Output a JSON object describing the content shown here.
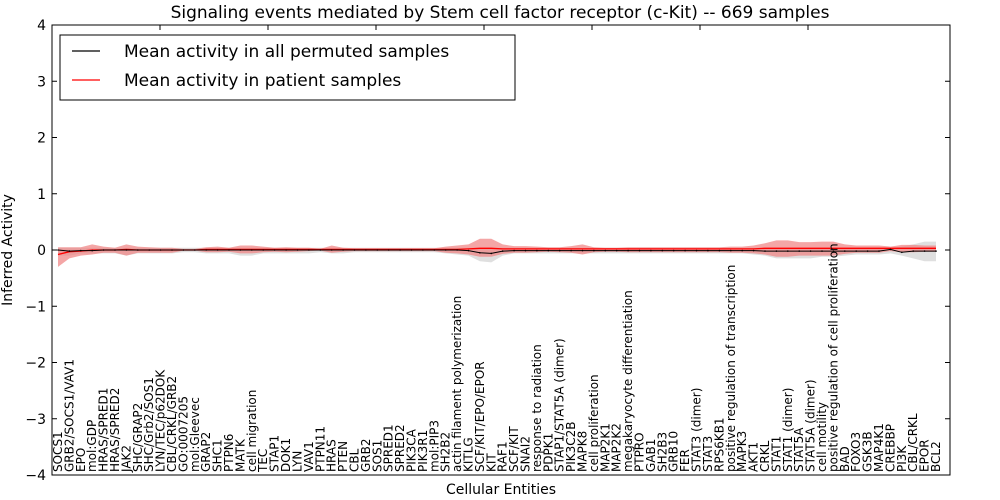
{
  "chart_data": {
    "type": "line",
    "title": "Signaling events mediated by Stem cell factor receptor (c-Kit) -- 669 samples",
    "xlabel": "Cellular Entities",
    "ylabel": "Inferred Activity",
    "ylim": [
      -4,
      4
    ],
    "yticks": [
      -4,
      -3,
      -2,
      -1,
      0,
      1,
      2,
      3,
      4
    ],
    "ytick_labels": [
      "−4",
      "−3",
      "−2",
      "−1",
      "0",
      "1",
      "2",
      "3",
      "4"
    ],
    "grid": false,
    "legend_position": "top-left",
    "legend": [
      {
        "label": "Mean activity in all permuted samples",
        "color": "#000000"
      },
      {
        "label": "Mean activity in patient samples",
        "color": "#ff0000"
      }
    ],
    "colors": {
      "patient_line": "#ff0000",
      "patient_band": "#f08080",
      "permuted_line": "#000000",
      "permuted_band": "#d9d9d9"
    },
    "categories": [
      "SOCS1",
      "GRB2/SOCS1/VAV1",
      "EPO",
      "mol:GDP",
      "HRAS/SPRED1",
      "HRAS/SPRED2",
      "JAK2",
      "SHC/GRAP2",
      "SHC/Grb2/SOS1",
      "LYN/TEC/p62DOK",
      "CBL/CRKL/GRB2",
      "GO:0007205",
      "mol:Gleevec",
      "GRAP2",
      "SHC1",
      "PTPN6",
      "MATK",
      "cell migration",
      "TEC",
      "STAP1",
      "DOK1",
      "LYN",
      "VAV1",
      "PTPN11",
      "HRAS",
      "PTEN",
      "CBL",
      "GRB2",
      "SOS1",
      "SPRED1",
      "SPRED2",
      "PIK3CA",
      "PIK3R1",
      "mol:PIP3",
      "SH2B2",
      "actin filament polymerization",
      "KITLG",
      "SCF/KIT/EPO/EPOR",
      "KIT",
      "RAF1",
      "SCF/KIT",
      "SNAI2",
      "response to radiation",
      "PDPK1",
      "STAP1/STAT5A (dimer)",
      "PIK3C2B",
      "MAPK8",
      "cell proliferation",
      "MAP2K1",
      "MAP2K2",
      "megakaryocyte differentiation",
      "PTPRO",
      "GAB1",
      "SH2B3",
      "GRB10",
      "FER",
      "STAT3 (dimer)",
      "STAT3",
      "RPS6KB1",
      "positive regulation of transcription",
      "MAPK3",
      "AKT1",
      "CRKL",
      "STAT1",
      "STAT1 (dimer)",
      "STAT5A",
      "STAT5A (dimer)",
      "cell motility",
      "positive regulation of cell proliferation",
      "BAD",
      "FOXO3",
      "GSK3B",
      "MAP4K1",
      "CREBBP",
      "PI3K",
      "CBL/CRKL",
      "EPOR",
      "BCL2"
    ],
    "series": [
      {
        "name": "Mean activity in patient samples",
        "values": [
          -0.08,
          -0.03,
          -0.02,
          0.0,
          0.0,
          0.0,
          0.01,
          0.0,
          0.0,
          0.0,
          0.0,
          0.0,
          0.0,
          0.01,
          0.01,
          0.01,
          0.01,
          0.01,
          0.01,
          0.01,
          0.01,
          0.01,
          0.01,
          0.01,
          0.01,
          0.01,
          0.01,
          0.01,
          0.01,
          0.01,
          0.01,
          0.01,
          0.01,
          0.01,
          0.01,
          0.01,
          0.02,
          0.03,
          0.03,
          0.02,
          0.02,
          0.02,
          0.02,
          0.02,
          0.02,
          0.02,
          0.02,
          0.02,
          0.02,
          0.02,
          0.02,
          0.02,
          0.02,
          0.02,
          0.02,
          0.02,
          0.02,
          0.02,
          0.02,
          0.02,
          0.02,
          0.02,
          0.03,
          0.03,
          0.03,
          0.03,
          0.03,
          0.03,
          0.03,
          0.03,
          0.03,
          0.03,
          0.03,
          0.03,
          0.03,
          0.03,
          0.03,
          0.03
        ],
        "band_upper": [
          0.05,
          0.05,
          0.05,
          0.1,
          0.06,
          0.04,
          0.1,
          0.06,
          0.05,
          0.04,
          0.04,
          0.02,
          0.02,
          0.05,
          0.06,
          0.04,
          0.08,
          0.08,
          0.06,
          0.04,
          0.05,
          0.04,
          0.04,
          0.02,
          0.08,
          0.04,
          0.03,
          0.03,
          0.03,
          0.03,
          0.03,
          0.03,
          0.03,
          0.03,
          0.06,
          0.08,
          0.1,
          0.2,
          0.2,
          0.1,
          0.07,
          0.07,
          0.06,
          0.05,
          0.05,
          0.07,
          0.1,
          0.05,
          0.04,
          0.04,
          0.05,
          0.05,
          0.05,
          0.05,
          0.05,
          0.05,
          0.05,
          0.05,
          0.05,
          0.06,
          0.06,
          0.08,
          0.12,
          0.17,
          0.17,
          0.14,
          0.14,
          0.15,
          0.15,
          0.1,
          0.08,
          0.08,
          0.08,
          0.06,
          0.09,
          0.09,
          0.08,
          0.08
        ],
        "band_lower": [
          -0.3,
          -0.15,
          -0.1,
          -0.08,
          -0.05,
          -0.05,
          -0.1,
          -0.05,
          -0.05,
          -0.05,
          -0.05,
          -0.01,
          -0.01,
          -0.04,
          -0.04,
          -0.03,
          -0.06,
          -0.06,
          -0.04,
          -0.03,
          -0.04,
          -0.03,
          -0.02,
          -0.01,
          -0.05,
          -0.03,
          -0.02,
          -0.02,
          -0.02,
          -0.02,
          -0.02,
          -0.02,
          -0.02,
          -0.02,
          -0.05,
          -0.06,
          -0.08,
          -0.12,
          -0.12,
          -0.07,
          -0.05,
          -0.05,
          -0.04,
          -0.03,
          -0.04,
          -0.05,
          -0.08,
          -0.04,
          -0.03,
          -0.03,
          -0.04,
          -0.04,
          -0.04,
          -0.04,
          -0.04,
          -0.04,
          -0.04,
          -0.04,
          -0.04,
          -0.05,
          -0.05,
          -0.06,
          -0.08,
          -0.12,
          -0.12,
          -0.1,
          -0.1,
          -0.1,
          -0.1,
          -0.07,
          -0.05,
          -0.05,
          -0.05,
          -0.02,
          -0.04,
          -0.04,
          -0.03,
          -0.03
        ]
      },
      {
        "name": "Mean activity in all permuted samples",
        "values": [
          0.0,
          -0.02,
          -0.01,
          -0.01,
          0.0,
          0.0,
          0.0,
          0.0,
          0.0,
          0.0,
          0.0,
          0.0,
          0.0,
          0.0,
          0.0,
          0.0,
          0.0,
          0.0,
          0.0,
          0.0,
          0.0,
          0.0,
          0.0,
          0.0,
          0.0,
          0.0,
          0.0,
          0.0,
          0.0,
          0.0,
          0.0,
          0.0,
          0.0,
          0.0,
          0.0,
          0.0,
          -0.01,
          -0.05,
          -0.06,
          -0.02,
          -0.01,
          -0.01,
          -0.01,
          -0.01,
          -0.01,
          -0.01,
          -0.01,
          -0.01,
          -0.01,
          -0.01,
          -0.01,
          -0.01,
          -0.01,
          -0.01,
          -0.01,
          -0.01,
          -0.01,
          -0.01,
          -0.01,
          -0.01,
          -0.01,
          -0.01,
          -0.02,
          -0.02,
          -0.02,
          -0.02,
          -0.02,
          -0.02,
          -0.02,
          -0.02,
          -0.02,
          -0.02,
          -0.02,
          0.01,
          -0.04,
          -0.02,
          -0.02,
          -0.02
        ],
        "band_upper": [
          0.04,
          0.04,
          0.04,
          0.04,
          0.04,
          0.04,
          0.04,
          0.04,
          0.04,
          0.04,
          0.04,
          0.04,
          0.04,
          0.04,
          0.04,
          0.04,
          0.04,
          0.04,
          0.04,
          0.04,
          0.04,
          0.04,
          0.04,
          0.04,
          0.04,
          0.04,
          0.04,
          0.04,
          0.04,
          0.04,
          0.04,
          0.04,
          0.04,
          0.04,
          0.04,
          0.04,
          0.04,
          0.04,
          0.04,
          0.04,
          0.04,
          0.04,
          0.04,
          0.04,
          0.04,
          0.04,
          0.04,
          0.04,
          0.04,
          0.04,
          0.04,
          0.04,
          0.04,
          0.04,
          0.04,
          0.04,
          0.04,
          0.04,
          0.04,
          0.04,
          0.04,
          0.04,
          0.04,
          0.04,
          0.04,
          0.04,
          0.04,
          0.04,
          0.04,
          0.04,
          0.04,
          0.04,
          0.04,
          0.04,
          0.06,
          0.1,
          0.15,
          0.15
        ],
        "band_lower": [
          -0.1,
          -0.1,
          -0.06,
          -0.06,
          -0.06,
          -0.06,
          -0.1,
          -0.06,
          -0.06,
          -0.06,
          -0.06,
          -0.04,
          -0.04,
          -0.06,
          -0.06,
          -0.06,
          -0.1,
          -0.1,
          -0.06,
          -0.06,
          -0.06,
          -0.06,
          -0.06,
          -0.04,
          -0.06,
          -0.06,
          -0.04,
          -0.04,
          -0.04,
          -0.04,
          -0.04,
          -0.04,
          -0.04,
          -0.04,
          -0.06,
          -0.08,
          -0.1,
          -0.2,
          -0.22,
          -0.1,
          -0.06,
          -0.06,
          -0.06,
          -0.06,
          -0.06,
          -0.06,
          -0.06,
          -0.06,
          -0.06,
          -0.06,
          -0.06,
          -0.06,
          -0.06,
          -0.06,
          -0.06,
          -0.06,
          -0.06,
          -0.06,
          -0.06,
          -0.06,
          -0.06,
          -0.08,
          -0.1,
          -0.15,
          -0.15,
          -0.15,
          -0.15,
          -0.12,
          -0.12,
          -0.1,
          -0.08,
          -0.08,
          -0.08,
          -0.06,
          -0.1,
          -0.15,
          -0.2,
          -0.2
        ]
      }
    ]
  }
}
